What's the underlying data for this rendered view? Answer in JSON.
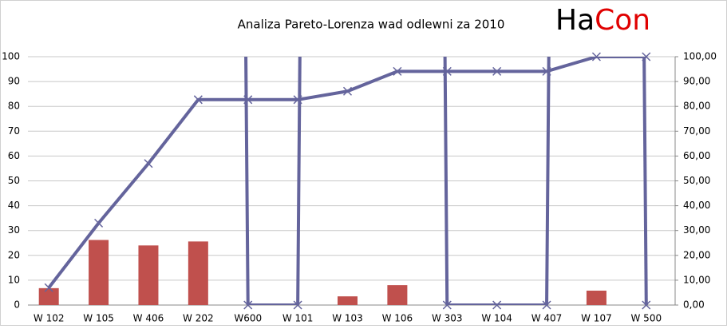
{
  "logo": [
    "Ha",
    "Con"
  ],
  "chart_data": {
    "type": "pareto",
    "title": "Analiza Pareto-Lorenza wad odlewni za 2010",
    "categories": [
      "W 102",
      "W 105",
      "W 406",
      "W 202",
      "W600",
      "W 101",
      "W 103",
      "W 106",
      "W 303",
      "W 104",
      "W 407",
      "W  107",
      "W 500"
    ],
    "series": [
      {
        "type": "bar",
        "color": "#c0504d",
        "values": [
          6.8,
          26.2,
          24,
          25.6,
          0,
          0,
          3.5,
          8,
          0,
          0,
          0,
          5.8,
          0
        ]
      },
      {
        "type": "line",
        "color": "#64649c",
        "values": [
          7,
          33,
          57,
          82.7,
          82.7,
          82.7,
          86.1,
          94.1,
          94.1,
          94.1,
          94.1,
          100,
          100
        ]
      },
      {
        "type": "line",
        "axis": "y2",
        "color": "#64649c",
        "values": [
          null,
          null,
          null,
          null,
          0,
          0,
          null,
          null,
          0,
          0,
          0,
          null,
          0
        ]
      }
    ],
    "ylim": [
      0,
      100
    ],
    "yticks": [
      0,
      10,
      20,
      30,
      40,
      50,
      60,
      70,
      80,
      90,
      100
    ],
    "y2lim": [
      0,
      100
    ],
    "y2ticks": [
      {
        "value": 0,
        "label": "0,00"
      },
      {
        "value": 10,
        "label": "10,00"
      },
      {
        "value": 20,
        "label": "20,00"
      },
      {
        "value": 30,
        "label": "30,00"
      },
      {
        "value": 40,
        "label": "40,00"
      },
      {
        "value": 50,
        "label": "50,00"
      },
      {
        "value": 60,
        "label": "60,00"
      },
      {
        "value": 70,
        "label": "70,00"
      },
      {
        "value": 80,
        "label": "80,00"
      },
      {
        "value": 90,
        "label": "90,00"
      },
      {
        "value": 100,
        "label": "100,00"
      }
    ],
    "grid": true
  }
}
